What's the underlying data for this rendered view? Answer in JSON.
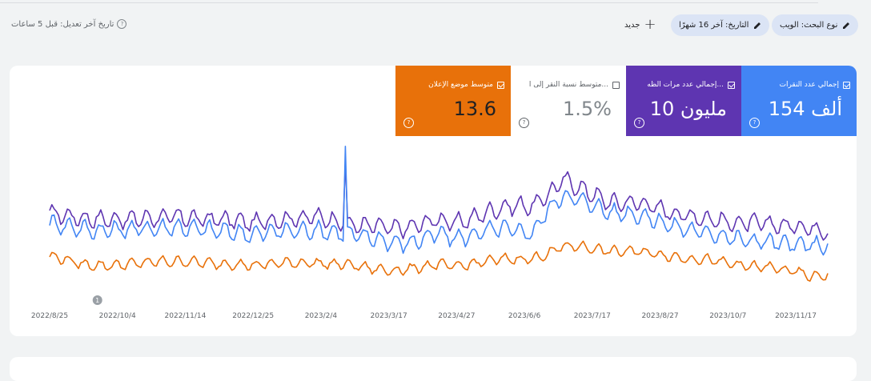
{
  "filters": {
    "search_type": "نوع البحث: الويب",
    "date_range": "التاريخ: آخر 16 شهرًا",
    "new_label": "جديد",
    "last_modified": "تاريخ آخر تعديل: قبل 5 ساعات"
  },
  "metrics": {
    "clicks": {
      "label": "إجمالي عدد النقرات",
      "value": "154 ألف",
      "checked": true,
      "color": "#4285f4"
    },
    "impressions": {
      "label": "إجمالي عدد مرات الظه...",
      "value": "10 مليون",
      "checked": true,
      "color": "#5e35b1"
    },
    "ctr": {
      "label": "متوسط نسبة النقر إلى ا...",
      "value": "1.5%",
      "checked": false
    },
    "position": {
      "label": "متوسط موضع الإعلان",
      "value": "13.6",
      "checked": true,
      "color": "#e8710a"
    }
  },
  "annotation": {
    "label": "1",
    "date": "2022/10/4"
  },
  "chart_data": {
    "type": "line",
    "x_ticks": [
      "2022/8/25",
      "2022/10/4",
      "2022/11/14",
      "2022/12/25",
      "2023/2/4",
      "2023/3/17",
      "2023/4/27",
      "2023/6/6",
      "2023/7/17",
      "2023/8/27",
      "2023/10/7",
      "2023/11/17"
    ],
    "y_axis_visible": false,
    "grid": false,
    "series": [
      {
        "name": "إجمالي عدد مرات الظه...",
        "color": "#5e35b1",
        "weekly_level": [
          0.6,
          0.58,
          0.56,
          0.55,
          0.55,
          0.55,
          0.56,
          0.56,
          0.57,
          0.56,
          0.55,
          0.55,
          0.54,
          0.52,
          0.54,
          0.55,
          0.56,
          0.57,
          0.55,
          0.52,
          0.5,
          0.5,
          0.48,
          0.48,
          0.52,
          0.55,
          0.52,
          0.55,
          0.6,
          0.64,
          0.66,
          0.65,
          0.74,
          0.86,
          0.8,
          0.74,
          0.68,
          0.68,
          0.68,
          0.64,
          0.6,
          0.58,
          0.56,
          0.54,
          0.52,
          0.52,
          0.52,
          0.5,
          0.5,
          0.48,
          0.46
        ],
        "spike": {
          "week": 19,
          "level": 1.0
        }
      },
      {
        "name": "إجمالي عدد النقرات",
        "color": "#4285f4",
        "weekly_level": [
          0.52,
          0.5,
          0.48,
          0.46,
          0.47,
          0.47,
          0.48,
          0.48,
          0.49,
          0.48,
          0.47,
          0.46,
          0.45,
          0.43,
          0.45,
          0.46,
          0.46,
          0.47,
          0.45,
          0.44,
          0.42,
          0.4,
          0.37,
          0.36,
          0.4,
          0.44,
          0.4,
          0.42,
          0.46,
          0.48,
          0.46,
          0.44,
          0.62,
          0.74,
          0.7,
          0.66,
          0.6,
          0.6,
          0.58,
          0.54,
          0.5,
          0.47,
          0.45,
          0.43,
          0.4,
          0.38,
          0.38,
          0.36,
          0.35,
          0.35,
          0.34
        ],
        "spike": {
          "week": 19,
          "level": 1.12
        }
      },
      {
        "name": "متوسط موضع الإعلان",
        "color": "#e8710a",
        "weekly_level": [
          0.26,
          0.24,
          0.2,
          0.19,
          0.19,
          0.2,
          0.21,
          0.22,
          0.22,
          0.22,
          0.21,
          0.2,
          0.2,
          0.19,
          0.2,
          0.21,
          0.21,
          0.21,
          0.2,
          0.2,
          0.18,
          0.16,
          0.15,
          0.16,
          0.18,
          0.2,
          0.18,
          0.2,
          0.22,
          0.24,
          0.24,
          0.24,
          0.28,
          0.34,
          0.34,
          0.32,
          0.3,
          0.3,
          0.3,
          0.28,
          0.26,
          0.24,
          0.24,
          0.22,
          0.2,
          0.18,
          0.18,
          0.16,
          0.14,
          0.1,
          0.12
        ]
      }
    ]
  }
}
